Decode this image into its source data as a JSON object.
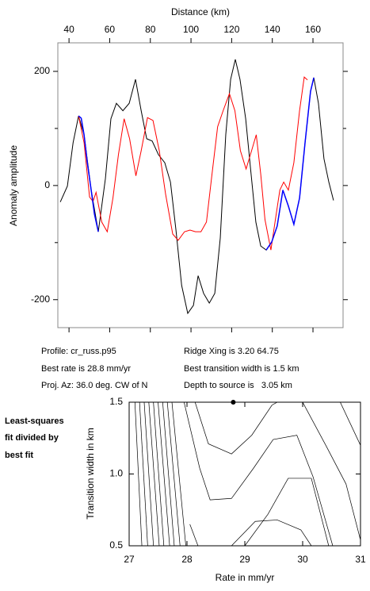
{
  "chart_data": [
    {
      "type": "line",
      "xlabel": "Distance (km)",
      "ylabel": "Anomaly amplitude",
      "xlim": [
        34.5,
        174.8
      ],
      "ylim": [
        -249,
        250
      ],
      "xticks": [
        40,
        60,
        80,
        100,
        120,
        140,
        160
      ],
      "yticks": [
        -200,
        0,
        200
      ],
      "yminorticks": [
        -100,
        100
      ],
      "series": [
        {
          "color": "#000000",
          "x": [
            35.7,
            39.2,
            42,
            44.7,
            47.4,
            50.9,
            54.4,
            57.9,
            60.6,
            63.3,
            66.5,
            69.6,
            72.7,
            75.5,
            78.2,
            80.9,
            84,
            87.1,
            89.9,
            92.6,
            95.4,
            98.4,
            101.2,
            103.5,
            106.2,
            109,
            111.7,
            114.4,
            117.1,
            119.5,
            121.8,
            124.1,
            126.9,
            129.2,
            131.9,
            134.3,
            137,
            139.7,
            142.4,
            145.2,
            147.9,
            150.6,
            153.4,
            156.1,
            158.8,
            160.4,
            162.7,
            165.4,
            167.8,
            170.1
          ],
          "values": [
            -29,
            -1,
            75,
            122,
            89,
            -8,
            -81,
            12,
            117,
            144,
            131,
            144,
            186,
            131,
            82,
            78,
            54,
            40,
            6,
            -78,
            -175,
            -224,
            -210,
            -158,
            -189,
            -206,
            -189,
            -92,
            89,
            186,
            221,
            186,
            117,
            33,
            -64,
            -106,
            -113,
            -99,
            -71,
            -8,
            -36,
            -68,
            -22,
            75,
            165,
            189,
            144,
            47,
            6,
            -26
          ]
        },
        {
          "color": "#ff0000",
          "x": [
            44.7,
            47.4,
            50.1,
            51.8,
            53.3,
            56.1,
            58.8,
            61.6,
            64.3,
            67.1,
            69.8,
            72.9,
            75.5,
            78.6,
            81.3,
            84.4,
            87.5,
            91,
            93.7,
            96.8,
            99.5,
            102.2,
            104.9,
            107.6,
            110.3,
            113.1,
            115.8,
            118.9,
            121.6,
            124.3,
            127.1,
            129.8,
            132.1,
            134.3,
            136.4,
            139.3,
            141.5,
            143.7,
            145.6,
            147.9,
            150.6,
            153.4,
            155.7,
            157.3
          ],
          "values": [
            122,
            75,
            -20,
            -28,
            -12,
            -64,
            -81,
            -22,
            54,
            117,
            82,
            17,
            61,
            119,
            114,
            61,
            -15,
            -85,
            -96,
            -81,
            -78,
            -81,
            -81,
            -64,
            19,
            103,
            131,
            161,
            131,
            61,
            29,
            61,
            89,
            20,
            -60,
            -113,
            -60,
            -8,
            6,
            -8,
            40,
            131,
            190,
            185
          ]
        },
        {
          "color": "#0000ff",
          "x": [
            44.7,
            46,
            47.4,
            49,
            50.9,
            52.5,
            54.4,
            null,
            137,
            139.7,
            142.4,
            145.2,
            147.9,
            150.6,
            153.4,
            156.1,
            158.8,
            160.4
          ],
          "values": [
            122,
            118,
            89,
            40,
            -8,
            -50,
            -81,
            null,
            -113,
            -99,
            -71,
            -8,
            -36,
            -68,
            -22,
            75,
            165,
            189
          ]
        }
      ]
    },
    {
      "type": "contour",
      "xlabel": "Rate in mm/yr",
      "ylabel": "Transition width in km",
      "xlim": [
        27,
        31
      ],
      "ylim": [
        0.5,
        1.5
      ],
      "xticks": [
        27,
        28,
        29,
        30,
        31
      ],
      "yticks": [
        {
          "value": 0.5,
          "label": "0.5"
        },
        {
          "value": 1.0,
          "label": "1.0"
        },
        {
          "value": 1.5,
          "label": "1.5"
        }
      ],
      "color": "#000000",
      "lines": [
        {
          "x": [
            27.1,
            27.22
          ],
          "y": [
            1.5,
            0.5
          ]
        },
        {
          "x": [
            27.18,
            27.32
          ],
          "y": [
            1.5,
            0.5
          ]
        },
        {
          "x": [
            27.26,
            27.42
          ],
          "y": [
            1.5,
            0.5
          ]
        },
        {
          "x": [
            27.34,
            27.52
          ],
          "y": [
            1.5,
            0.5
          ]
        },
        {
          "x": [
            27.42,
            27.6
          ],
          "y": [
            1.5,
            0.5
          ]
        },
        {
          "x": [
            27.5,
            27.7
          ],
          "y": [
            1.5,
            0.5
          ]
        },
        {
          "x": [
            27.58,
            27.78
          ],
          "y": [
            1.5,
            0.5
          ]
        },
        {
          "x": [
            27.66,
            27.88
          ],
          "y": [
            1.5,
            0.5
          ]
        },
        {
          "x": [
            27.74,
            27.98
          ],
          "y": [
            1.5,
            0.5
          ]
        },
        {
          "x": [
            28.14,
            28.37,
            28.77,
            29.12,
            29.47,
            29.56
          ],
          "y": [
            1.5,
            1.21,
            1.14,
            1.27,
            1.48,
            1.5
          ]
        },
        {
          "x": [
            27.95,
            28.22,
            28.4,
            28.77,
            29.15,
            29.49,
            29.9,
            30.18,
            30.52
          ],
          "y": [
            1.5,
            1.04,
            0.82,
            0.83,
            1.04,
            1.24,
            1.27,
            0.98,
            0.5
          ]
        },
        {
          "x": [
            28.05,
            28.19
          ],
          "y": [
            0.65,
            0.5
          ]
        },
        {
          "x": [
            28.77,
            29.18,
            29.56,
            29.97,
            30.15
          ],
          "y": [
            0.5,
            0.67,
            0.68,
            0.61,
            0.5
          ]
        },
        {
          "x": [
            29.0,
            29.4,
            29.75,
            30.15,
            30.45
          ],
          "y": [
            0.5,
            0.72,
            0.97,
            0.97,
            0.5
          ]
        },
        {
          "x": [
            30.0,
            30.4,
            30.75,
            31.0
          ],
          "y": [
            1.5,
            1.2,
            0.93,
            0.54
          ]
        },
        {
          "x": [
            30.65,
            31.0
          ],
          "y": [
            1.5,
            1.2
          ]
        }
      ],
      "point": {
        "x": 28.8,
        "y": 1.5
      }
    }
  ],
  "info": {
    "profile": "Profile: cr_russ.p95",
    "rate": "Best rate is 28.8 mm/yr",
    "azimuth": "Proj. Az: 36.0 deg. CW of N",
    "ridge": "Ridge Xing is 3.20 64.75",
    "width": "Best transition width is 1.5 km",
    "depth": "Depth to source is   3.05 km"
  },
  "side_label": [
    "Least-squares",
    "fit divided by",
    "best fit"
  ]
}
